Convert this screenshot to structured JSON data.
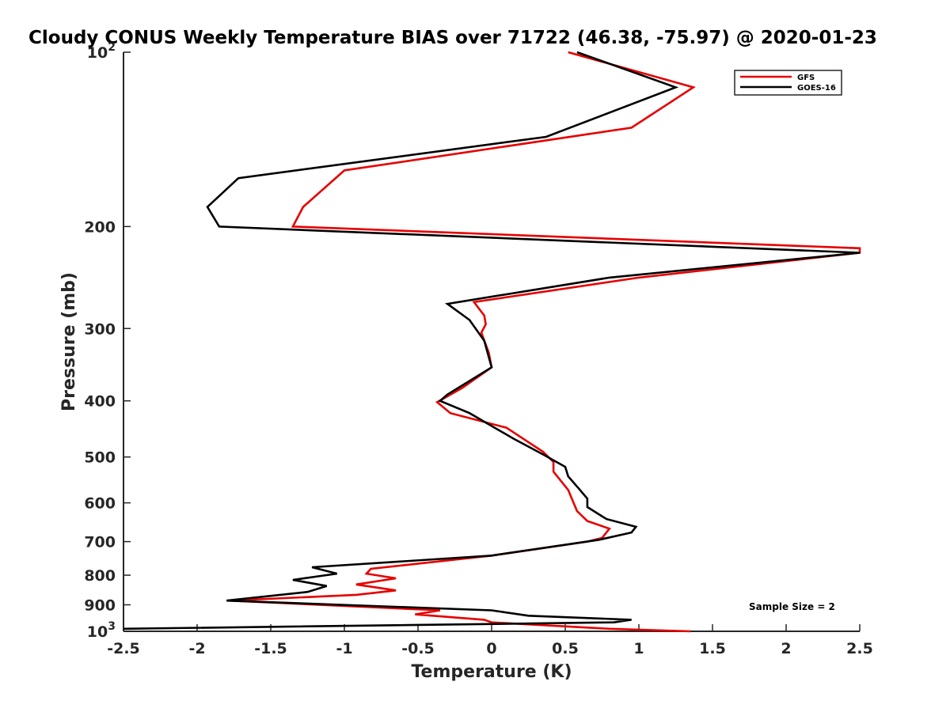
{
  "chart_data": {
    "type": "line",
    "title": "Cloudy CONUS Weekly Temperature BIAS over 71722 (46.38, -75.97) @ 2020-01-23",
    "xlabel": "Temperature (K)",
    "ylabel": "Pressure (mb)",
    "xlim": [
      -2.5,
      2.5
    ],
    "ylim": [
      100,
      1000
    ],
    "y_scale": "log",
    "y_direction": "reversed",
    "grid": false,
    "legend_position": "top-right",
    "x_ticks": [
      "-2.5",
      "-2",
      "-1.5",
      "-1",
      "-0.5",
      "0",
      "0.5",
      "1",
      "1.5",
      "2",
      "2.5"
    ],
    "y_ticks": [
      {
        "value": 100,
        "base": "10",
        "exp": "2"
      },
      {
        "value": 200,
        "label": "200"
      },
      {
        "value": 300,
        "label": "300"
      },
      {
        "value": 400,
        "label": "400"
      },
      {
        "value": 500,
        "label": "500"
      },
      {
        "value": 600,
        "label": "600"
      },
      {
        "value": 700,
        "label": "700"
      },
      {
        "value": 800,
        "label": "800"
      },
      {
        "value": 900,
        "label": "900"
      },
      {
        "value": 1000,
        "base": "10",
        "exp": "3"
      }
    ],
    "series": [
      {
        "name": "GFS",
        "color": "#e60000",
        "points": [
          [
            0.52,
            100
          ],
          [
            1.37,
            115
          ],
          [
            0.95,
            135
          ],
          [
            -1.0,
            160
          ],
          [
            -1.28,
            185
          ],
          [
            -1.35,
            200
          ],
          [
            2.5,
            218
          ],
          [
            2.5,
            222
          ],
          [
            1.0,
            245
          ],
          [
            -0.12,
            270
          ],
          [
            -0.05,
            285
          ],
          [
            -0.04,
            295
          ],
          [
            -0.07,
            305
          ],
          [
            -0.02,
            330
          ],
          [
            0.0,
            350
          ],
          [
            -0.2,
            380
          ],
          [
            -0.37,
            402
          ],
          [
            -0.28,
            420
          ],
          [
            0.1,
            445
          ],
          [
            0.35,
            490
          ],
          [
            0.42,
            510
          ],
          [
            0.42,
            530
          ],
          [
            0.52,
            570
          ],
          [
            0.58,
            620
          ],
          [
            0.65,
            645
          ],
          [
            0.8,
            665
          ],
          [
            0.75,
            690
          ],
          [
            0.65,
            700
          ],
          [
            0.0,
            740
          ],
          [
            -0.82,
            780
          ],
          [
            -0.85,
            795
          ],
          [
            -0.65,
            810
          ],
          [
            -0.92,
            830
          ],
          [
            -0.65,
            850
          ],
          [
            -0.92,
            865
          ],
          [
            -1.78,
            885
          ],
          [
            -0.35,
            920
          ],
          [
            -0.52,
            935
          ],
          [
            -0.05,
            955
          ],
          [
            0.0,
            965
          ],
          [
            0.8,
            990
          ],
          [
            1.35,
            1000
          ]
        ]
      },
      {
        "name": "GOES-16",
        "color": "#000000",
        "points": [
          [
            0.58,
            100
          ],
          [
            1.25,
            115
          ],
          [
            0.37,
            140
          ],
          [
            -1.72,
            165
          ],
          [
            -1.93,
            185
          ],
          [
            -1.85,
            200
          ],
          [
            2.5,
            222
          ],
          [
            0.8,
            245
          ],
          [
            -0.3,
            272
          ],
          [
            -0.15,
            290
          ],
          [
            -0.05,
            315
          ],
          [
            0.0,
            350
          ],
          [
            -0.3,
            390
          ],
          [
            -0.35,
            400
          ],
          [
            -0.15,
            420
          ],
          [
            0.02,
            445
          ],
          [
            0.15,
            465
          ],
          [
            0.35,
            495
          ],
          [
            0.5,
            520
          ],
          [
            0.52,
            540
          ],
          [
            0.6,
            570
          ],
          [
            0.65,
            590
          ],
          [
            0.65,
            610
          ],
          [
            0.78,
            640
          ],
          [
            0.98,
            660
          ],
          [
            0.95,
            675
          ],
          [
            0.73,
            695
          ],
          [
            0.0,
            740
          ],
          [
            -1.22,
            775
          ],
          [
            -1.05,
            795
          ],
          [
            -1.35,
            815
          ],
          [
            -1.12,
            835
          ],
          [
            -1.25,
            855
          ],
          [
            -1.8,
            885
          ],
          [
            0.0,
            920
          ],
          [
            0.25,
            940
          ],
          [
            0.95,
            955
          ],
          [
            0.83,
            965
          ],
          [
            -2.5,
            990
          ]
        ]
      }
    ],
    "annotation": "Sample Size = 2"
  }
}
